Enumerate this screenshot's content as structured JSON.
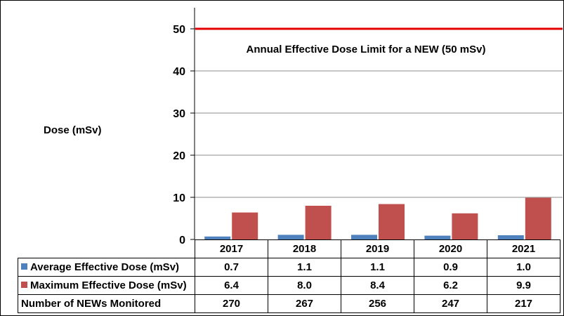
{
  "chart_data": {
    "type": "bar",
    "ylabel": "Dose (mSv)",
    "ylim": [
      0,
      55
    ],
    "yticks": [
      0,
      10,
      20,
      30,
      40,
      50
    ],
    "grid": true,
    "categories": [
      "2017",
      "2018",
      "2019",
      "2020",
      "2021"
    ],
    "series": [
      {
        "name": "Average Effective Dose (mSv)",
        "color": "#4f81bd",
        "values": [
          0.7,
          1.1,
          1.1,
          0.9,
          1.0
        ],
        "labels": [
          "0.7",
          "1.1",
          "1.1",
          "0.9",
          "1.0"
        ]
      },
      {
        "name": "Maximum Effective Dose (mSv)",
        "color": "#c0504d",
        "values": [
          6.4,
          8.0,
          8.4,
          6.2,
          9.9
        ],
        "labels": [
          "6.4",
          "8.0",
          "8.4",
          "6.2",
          "9.9"
        ]
      }
    ],
    "reference_line": {
      "value": 50,
      "color": "#e30000",
      "label": "Annual Effective Dose Limit for a NEW (50 mSv)"
    },
    "table_extra_row": {
      "label": "Number of NEWs Monitored",
      "values": [
        "270",
        "267",
        "256",
        "247",
        "217"
      ]
    }
  }
}
